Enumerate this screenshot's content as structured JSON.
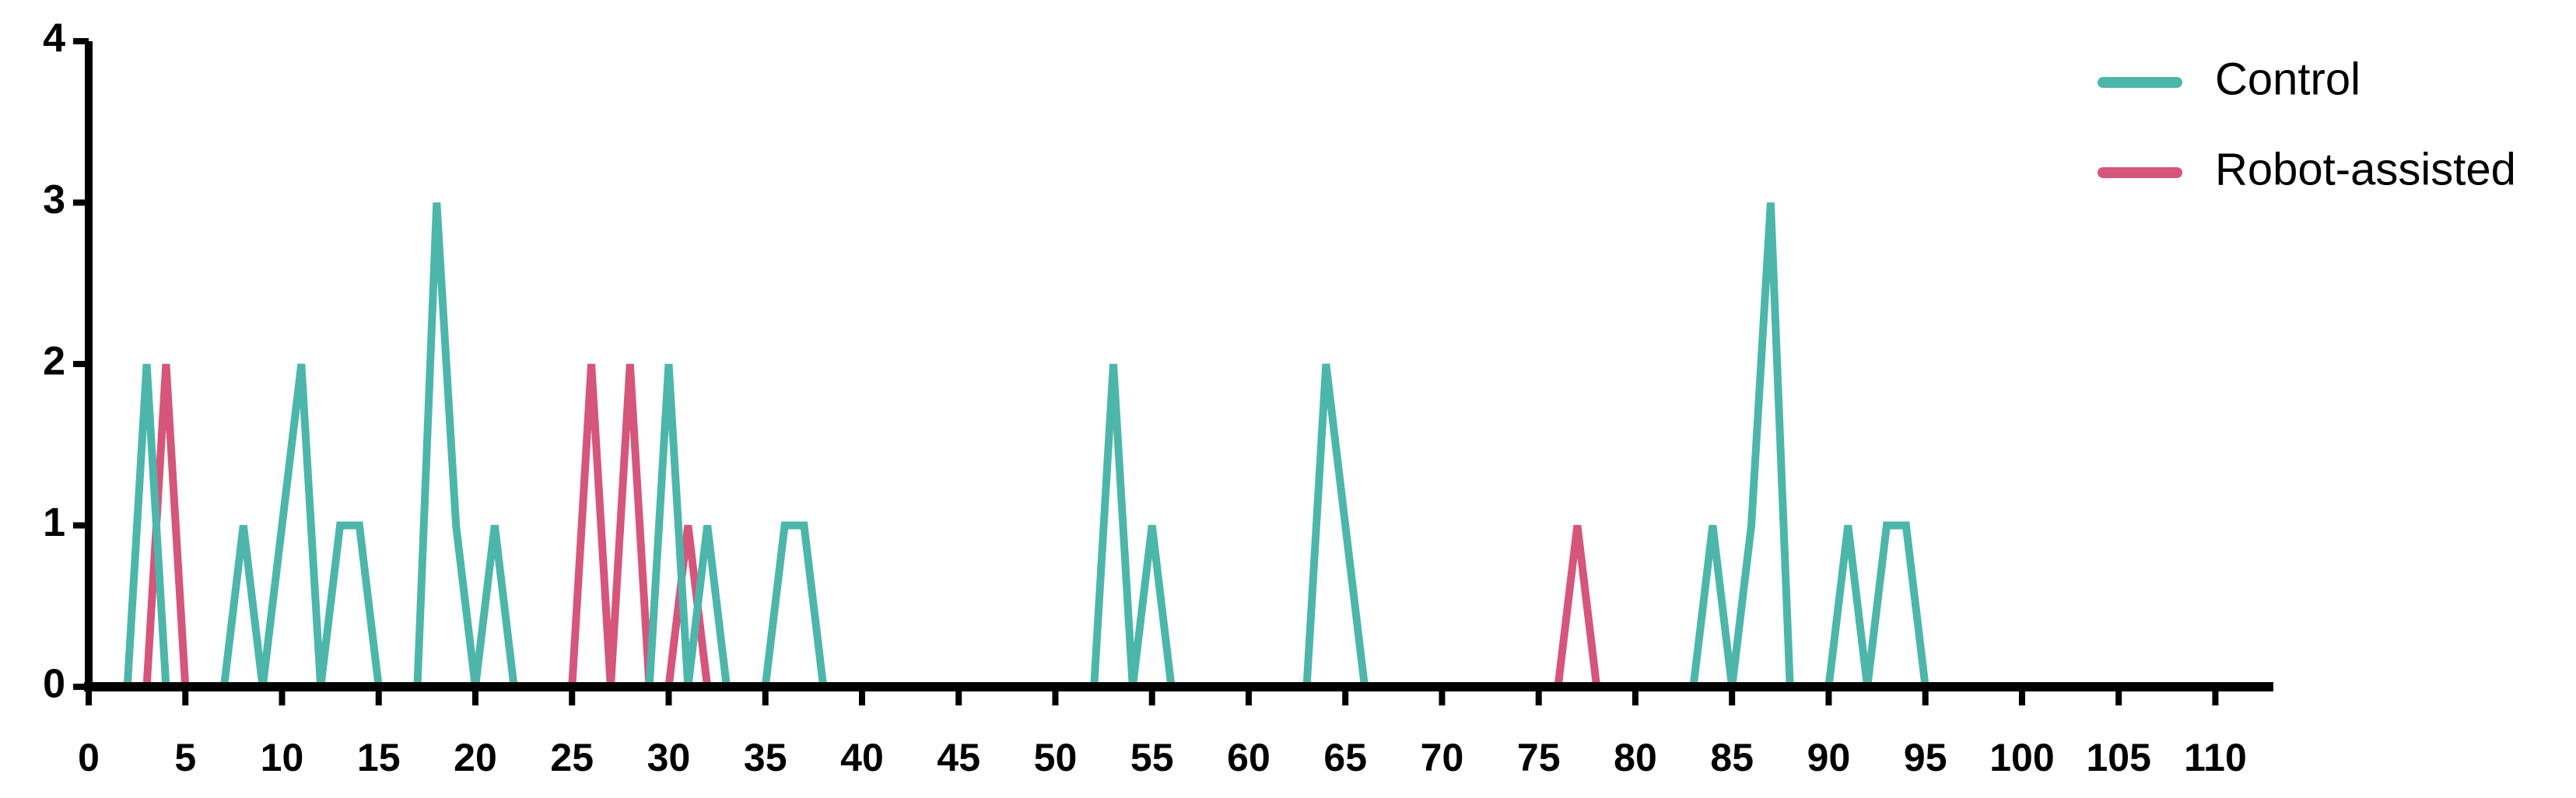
{
  "chart_data": {
    "type": "line",
    "x": [
      1,
      2,
      3,
      4,
      5,
      6,
      7,
      8,
      9,
      10,
      11,
      12,
      13,
      14,
      15,
      16,
      17,
      18,
      19,
      20,
      21,
      22,
      23,
      24,
      25,
      26,
      27,
      28,
      29,
      30,
      31,
      32,
      33,
      34,
      35,
      36,
      37,
      38,
      39,
      40,
      41,
      42,
      43,
      44,
      45,
      46,
      47,
      48,
      49,
      50,
      51,
      52,
      53,
      54,
      55,
      56,
      57,
      58,
      59,
      60,
      61,
      62,
      63,
      64,
      65,
      66,
      67,
      68,
      69,
      70,
      71,
      72,
      73,
      74,
      75,
      76,
      77,
      78,
      79,
      80,
      81,
      82,
      83,
      84,
      85,
      86,
      87,
      88,
      89,
      90,
      91,
      92,
      93,
      94,
      95,
      96,
      97,
      98,
      99,
      100,
      101,
      102,
      103,
      104,
      105,
      106,
      107,
      108,
      109,
      110,
      111,
      112
    ],
    "series": [
      {
        "name": "Control",
        "color": "#4db6ab",
        "values": [
          0,
          0,
          2,
          0,
          0,
          0,
          0,
          1,
          0,
          1,
          2,
          0,
          1,
          1,
          0,
          0,
          0,
          3,
          1,
          0,
          1,
          0,
          0,
          0,
          0,
          0,
          0,
          0,
          0,
          2,
          0,
          1,
          0,
          0,
          0,
          1,
          1,
          0,
          0,
          0,
          0,
          0,
          0,
          0,
          0,
          0,
          0,
          0,
          0,
          0,
          0,
          0,
          2,
          0,
          1,
          0,
          0,
          0,
          0,
          0,
          0,
          0,
          0,
          2,
          1,
          0,
          0,
          0,
          0,
          0,
          0,
          0,
          0,
          0,
          0,
          0,
          0,
          0,
          0,
          0,
          0,
          0,
          0,
          1,
          0,
          1,
          3,
          0,
          0,
          0,
          1,
          0,
          1,
          1,
          0,
          0,
          0,
          0,
          0,
          0,
          0,
          0,
          0,
          0,
          0,
          0,
          0,
          0,
          0,
          0,
          0,
          0
        ]
      },
      {
        "name": "Robot-assisted",
        "color": "#d6557a",
        "values": [
          0,
          0,
          0,
          2,
          0,
          0,
          0,
          0,
          0,
          0,
          0,
          0,
          0,
          0,
          0,
          0,
          0,
          0,
          0,
          0,
          0,
          0,
          0,
          0,
          0,
          2,
          0,
          2,
          0,
          0,
          1,
          0,
          0,
          0,
          0,
          0,
          0,
          0,
          0,
          0,
          0,
          0,
          0,
          0,
          0,
          0,
          0,
          0,
          0,
          0,
          0,
          0,
          0,
          0,
          0,
          0,
          0,
          0,
          0,
          0,
          0,
          0,
          0,
          0,
          0,
          0,
          0,
          0,
          0,
          0,
          0,
          0,
          0,
          0,
          0,
          0,
          1,
          0,
          0,
          0,
          0,
          0,
          0,
          0,
          0,
          0,
          0,
          0,
          0,
          0,
          0,
          0,
          0,
          0,
          0,
          0,
          0,
          0,
          0,
          0,
          0,
          0,
          0,
          0,
          0,
          0,
          0,
          0,
          0,
          0,
          0,
          0
        ]
      }
    ],
    "xlim": [
      0,
      113
    ],
    "xticks": [
      0,
      5,
      10,
      15,
      20,
      25,
      30,
      35,
      40,
      45,
      50,
      55,
      60,
      65,
      70,
      75,
      80,
      85,
      90,
      95,
      100,
      105,
      110
    ],
    "ylim": [
      0,
      4
    ],
    "yticks": [
      0,
      1,
      2,
      3,
      4
    ],
    "legend": "top-right"
  }
}
